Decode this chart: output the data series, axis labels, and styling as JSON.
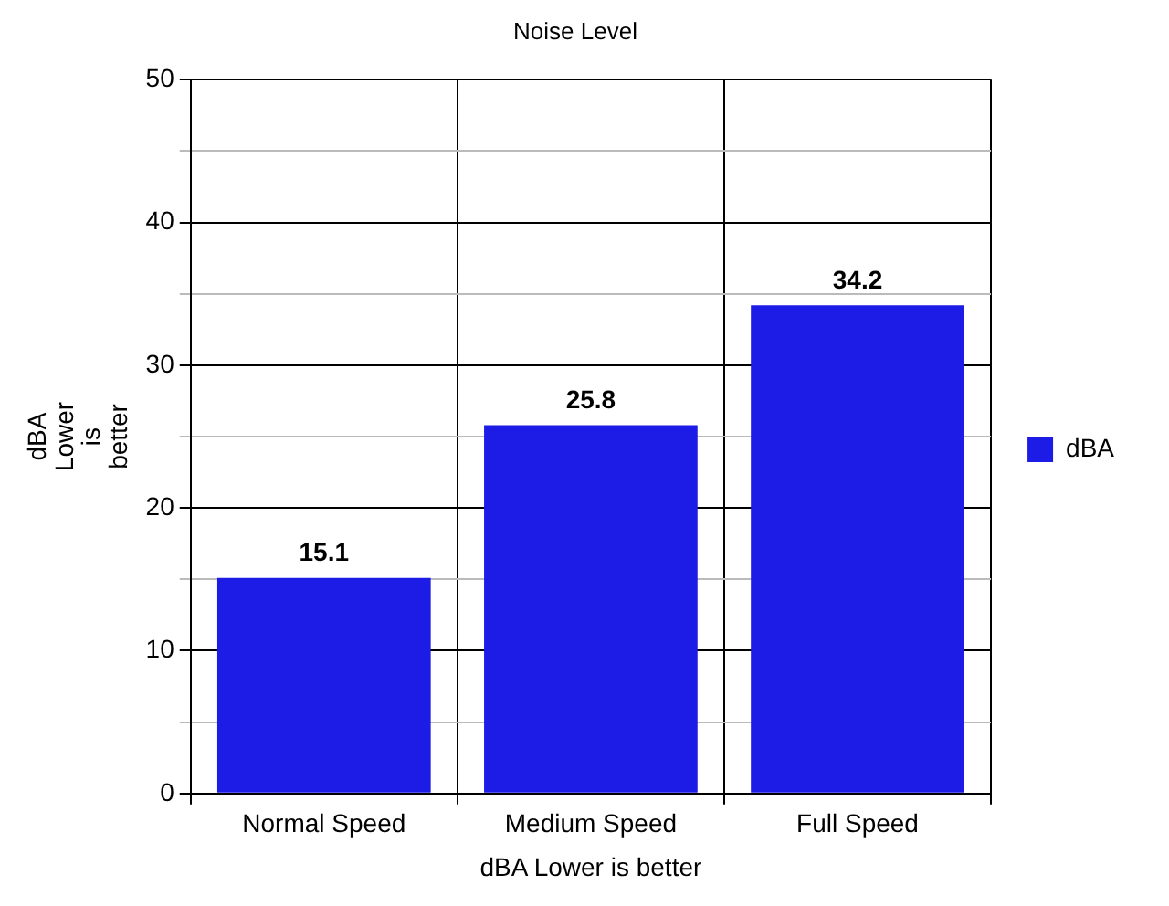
{
  "chart_data": {
    "type": "bar",
    "title": "Noise Level",
    "xlabel": "dBA Lower is better",
    "ylabel": "dBA Lower is better",
    "categories": [
      "Normal Speed",
      "Medium Speed",
      "Full Speed"
    ],
    "series": [
      {
        "name": "dBA",
        "color": "#1c1ce6",
        "values": [
          15.1,
          25.8,
          34.2
        ]
      }
    ],
    "ylim": [
      0,
      50
    ],
    "yticks": [
      0,
      {
        "value": 5,
        "label": null
      },
      10,
      {
        "value": 15,
        "label": null
      },
      20,
      {
        "value": 25,
        "label": null
      },
      30,
      {
        "value": 35,
        "label": null
      },
      40,
      {
        "value": 45,
        "label": null
      },
      50
    ],
    "grid": true,
    "legend": "right",
    "data_labels": true
  }
}
